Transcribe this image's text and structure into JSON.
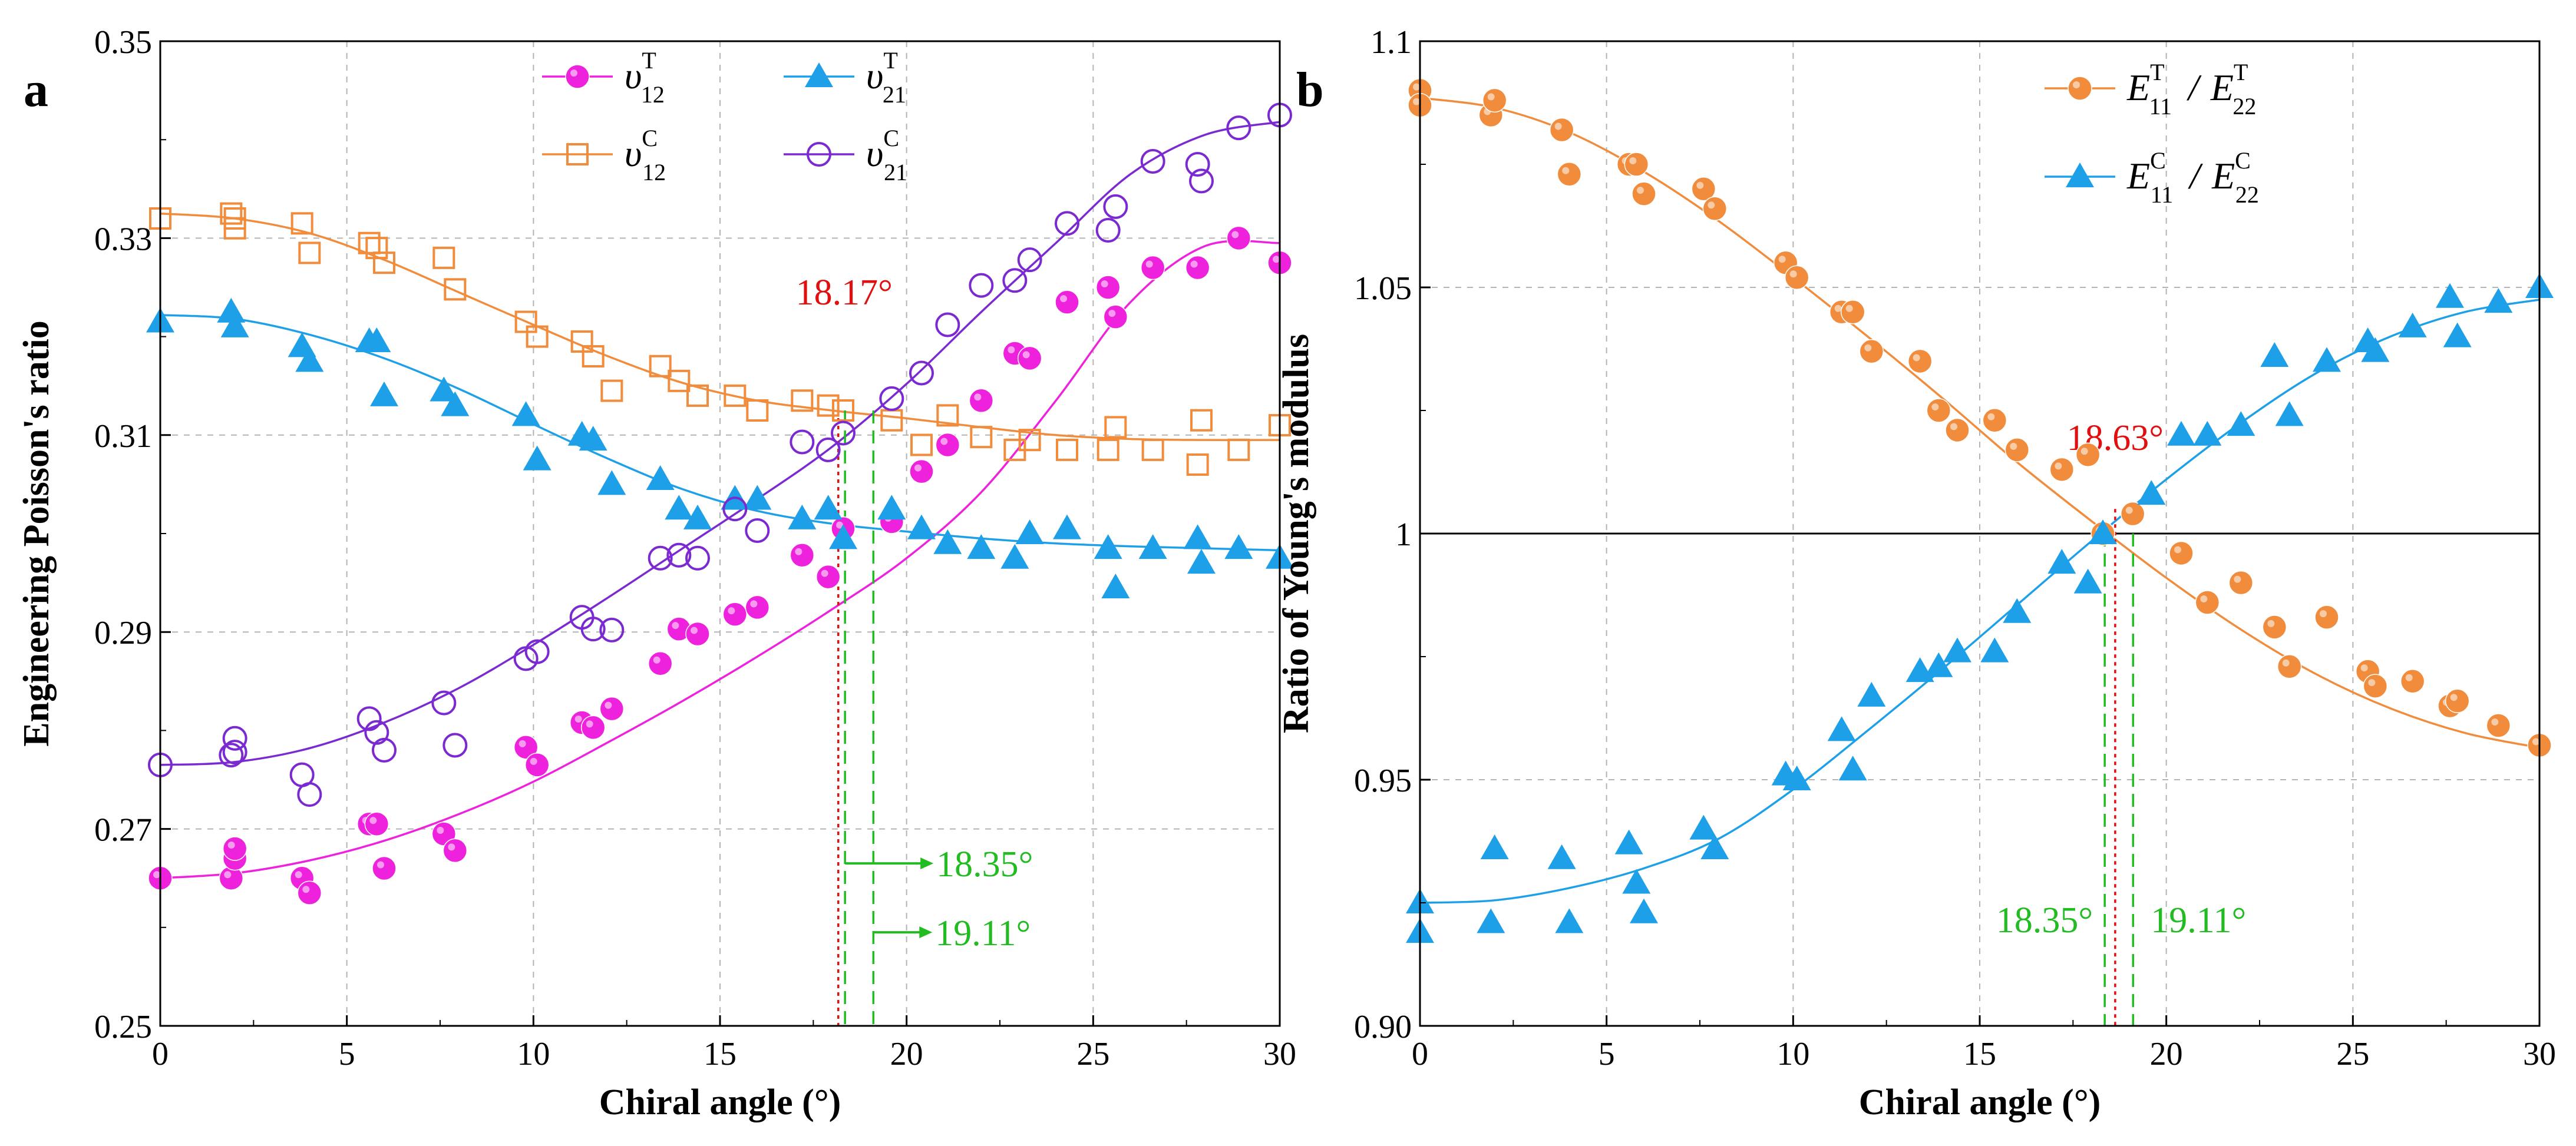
{
  "chart_data": [
    {
      "type": "scatter",
      "panel": "a",
      "xlabel": "Chiral angle (°)",
      "ylabel": "Engineering Poisson's ratio",
      "xlim": [
        0,
        30
      ],
      "ylim": [
        0.25,
        0.35
      ],
      "xticks": [
        "0",
        "5",
        "10",
        "15",
        "20",
        "25",
        "30"
      ],
      "yticks": [
        "0.25",
        "0.27",
        "0.29",
        "0.31",
        "0.33",
        "0.35"
      ],
      "grid": true,
      "legend_position": "top-center",
      "colors": {
        "v12T": "#ee22dd",
        "v21T": "#1ea0e8",
        "v12C": "#f08c3c",
        "v21C": "#7a2ad0",
        "red": "#e01010",
        "green": "#22bb22"
      },
      "series": [
        {
          "name": "v12T",
          "base": "υ",
          "sub": "12",
          "sup": "T",
          "marker": "filled-circle",
          "x": [
            0,
            1.9,
            2.0,
            2.0,
            3.8,
            4.0,
            5.6,
            5.8,
            6.0,
            7.6,
            7.9,
            9.8,
            10.1,
            11.3,
            11.6,
            12.1,
            13.4,
            13.9,
            14.4,
            15.4,
            16.0,
            17.2,
            17.9,
            18.3,
            19.6,
            20.4,
            21.1,
            22.0,
            22.9,
            23.3,
            24.3,
            25.4,
            25.6,
            26.6,
            27.8,
            28.9,
            30.0
          ],
          "y": [
            0.265,
            0.265,
            0.267,
            0.268,
            0.265,
            0.2635,
            0.2705,
            0.2705,
            0.266,
            0.2695,
            0.2678,
            0.2783,
            0.2765,
            0.2808,
            0.2803,
            0.2822,
            0.2868,
            0.2903,
            0.2898,
            0.2918,
            0.2925,
            0.2978,
            0.2956,
            0.3005,
            0.3012,
            0.3063,
            0.309,
            0.3135,
            0.3183,
            0.3178,
            0.3235,
            0.325,
            0.322,
            0.327,
            0.327,
            0.33,
            0.3275
          ]
        },
        {
          "name": "v21T",
          "base": "υ",
          "sub": "21",
          "sup": "T",
          "marker": "filled-triangle",
          "x": [
            0,
            1.9,
            2.0,
            3.8,
            4.0,
            5.6,
            5.8,
            6.0,
            7.6,
            7.9,
            9.8,
            10.1,
            11.3,
            11.6,
            12.1,
            13.4,
            13.9,
            14.4,
            15.4,
            16.0,
            17.2,
            17.9,
            18.3,
            19.6,
            20.4,
            21.1,
            22.0,
            22.9,
            23.3,
            24.3,
            25.4,
            25.6,
            26.6,
            27.8,
            27.9,
            28.9,
            30.0
          ],
          "y": [
            0.3215,
            0.3225,
            0.321,
            0.319,
            0.3175,
            0.3195,
            0.3195,
            0.314,
            0.3145,
            0.313,
            0.312,
            0.3075,
            0.31,
            0.3095,
            0.305,
            0.3055,
            0.3025,
            0.3015,
            0.3035,
            0.3035,
            0.3015,
            0.3025,
            0.2995,
            0.3025,
            0.3005,
            0.299,
            0.2985,
            0.2975,
            0.3,
            0.3005,
            0.2985,
            0.2945,
            0.2985,
            0.2995,
            0.297,
            0.2985,
            0.2975
          ]
        },
        {
          "name": "v12C",
          "base": "υ",
          "sub": "12",
          "sup": "C",
          "marker": "open-square",
          "x": [
            0,
            1.9,
            2.0,
            2.0,
            3.8,
            4.0,
            5.6,
            5.8,
            6.0,
            7.6,
            7.9,
            9.8,
            10.1,
            11.3,
            11.6,
            12.1,
            13.4,
            13.9,
            14.4,
            15.4,
            16.0,
            17.2,
            17.9,
            18.3,
            19.6,
            20.4,
            21.1,
            22.0,
            22.9,
            23.3,
            24.3,
            25.4,
            25.6,
            26.6,
            27.8,
            27.9,
            28.9,
            30.0
          ],
          "y": [
            0.332,
            0.3325,
            0.332,
            0.331,
            0.3315,
            0.3285,
            0.3295,
            0.329,
            0.3275,
            0.328,
            0.3248,
            0.3215,
            0.32,
            0.3195,
            0.318,
            0.3145,
            0.317,
            0.3155,
            0.314,
            0.314,
            0.3125,
            0.3135,
            0.313,
            0.3125,
            0.3115,
            0.309,
            0.312,
            0.3098,
            0.3085,
            0.3095,
            0.3085,
            0.3085,
            0.3108,
            0.3085,
            0.307,
            0.3115,
            0.3085,
            0.311
          ]
        },
        {
          "name": "v21C",
          "base": "υ",
          "sub": "21",
          "sup": "C",
          "marker": "open-circle",
          "x": [
            0,
            1.9,
            2.0,
            2.0,
            3.8,
            4.0,
            5.6,
            5.8,
            6.0,
            7.6,
            7.9,
            9.8,
            10.1,
            11.3,
            11.6,
            12.1,
            13.4,
            13.9,
            14.4,
            15.4,
            16.0,
            17.2,
            17.9,
            18.3,
            19.6,
            20.4,
            21.1,
            22.0,
            22.9,
            23.3,
            24.3,
            25.4,
            25.6,
            26.6,
            27.8,
            27.9,
            28.9,
            30.0
          ],
          "y": [
            0.2765,
            0.2775,
            0.2792,
            0.2778,
            0.2755,
            0.2735,
            0.2812,
            0.2798,
            0.278,
            0.2828,
            0.2785,
            0.2873,
            0.288,
            0.2915,
            0.2903,
            0.2902,
            0.2975,
            0.2978,
            0.2975,
            0.3025,
            0.3003,
            0.3093,
            0.3085,
            0.3102,
            0.3137,
            0.3163,
            0.3212,
            0.3252,
            0.3257,
            0.3278,
            0.3315,
            0.3308,
            0.3332,
            0.3378,
            0.3375,
            0.3358,
            0.3412,
            0.3425
          ]
        }
      ],
      "fits": [
        {
          "series": "v12T",
          "x": [
            0,
            2,
            4,
            6,
            8,
            10,
            12,
            14,
            16,
            18,
            20,
            22,
            24,
            26,
            28,
            30
          ],
          "y": [
            0.265,
            0.2655,
            0.2668,
            0.2688,
            0.2715,
            0.2748,
            0.2788,
            0.283,
            0.2875,
            0.2923,
            0.2975,
            0.3042,
            0.3135,
            0.3235,
            0.3292,
            0.3295
          ]
        },
        {
          "series": "v21T",
          "x": [
            0,
            2,
            4,
            6,
            8,
            10,
            12,
            14,
            16,
            18,
            20,
            22,
            24,
            26,
            28,
            30
          ],
          "y": [
            0.3222,
            0.3218,
            0.3202,
            0.3178,
            0.3147,
            0.3111,
            0.3076,
            0.3045,
            0.3023,
            0.301,
            0.3002,
            0.2995,
            0.299,
            0.2987,
            0.2985,
            0.2983
          ]
        },
        {
          "series": "v12C",
          "x": [
            0,
            2,
            4,
            6,
            8,
            10,
            12,
            14,
            16,
            18,
            20,
            22,
            24,
            26,
            28,
            30
          ],
          "y": [
            0.3325,
            0.332,
            0.3305,
            0.3278,
            0.3245,
            0.3212,
            0.318,
            0.3153,
            0.3135,
            0.3125,
            0.3117,
            0.3108,
            0.31,
            0.3096,
            0.3095,
            0.3095
          ]
        },
        {
          "series": "v21C",
          "x": [
            0,
            2,
            4,
            6,
            8,
            10,
            12,
            14,
            16,
            18,
            20,
            22,
            24,
            26,
            28,
            30
          ],
          "y": [
            0.2765,
            0.2768,
            0.2782,
            0.2808,
            0.2843,
            0.2887,
            0.2935,
            0.2985,
            0.3035,
            0.3088,
            0.3152,
            0.3225,
            0.3295,
            0.3365,
            0.3405,
            0.3418
          ]
        }
      ],
      "markers": [
        {
          "x": 18.17,
          "y_top": 0.3125,
          "color": "red",
          "style": "dotted",
          "label": "18.17°",
          "label_pos": "above"
        },
        {
          "x": 18.35,
          "y_top": 0.3125,
          "color": "green",
          "style": "dashed",
          "label": "18.35°",
          "label_pos": "arrow-upper"
        },
        {
          "x": 19.11,
          "y_top": 0.3125,
          "color": "green",
          "style": "dashed",
          "label": "19.11°",
          "label_pos": "arrow-lower"
        }
      ]
    },
    {
      "type": "scatter",
      "panel": "b",
      "xlabel": "Chiral angle (°)",
      "ylabel": "Ratio of Young's modulus",
      "xlim": [
        0,
        30
      ],
      "ylim": [
        0.9,
        1.1
      ],
      "xticks": [
        "0",
        "5",
        "10",
        "15",
        "20",
        "25",
        "30"
      ],
      "yticks": [
        "0.90",
        "0.95",
        "1",
        "1.05",
        "1.1"
      ],
      "grid": true,
      "reference_line_y": 1.0,
      "legend_position": "top-right",
      "colors": {
        "ET": "#f08c3c",
        "EC": "#1ea0e8",
        "red": "#e01010",
        "green": "#22bb22"
      },
      "series": [
        {
          "name": "ET",
          "num_sub": "11",
          "den_sub": "22",
          "sup": "T",
          "marker": "filled-circle",
          "x": [
            0,
            0,
            1.9,
            2.0,
            3.8,
            4.0,
            5.6,
            5.8,
            6.0,
            7.6,
            7.9,
            9.8,
            10.1,
            11.3,
            11.6,
            12.1,
            13.4,
            13.9,
            14.4,
            15.4,
            16.0,
            17.2,
            17.9,
            18.3,
            19.1,
            20.4,
            21.1,
            22.0,
            22.9,
            23.3,
            24.3,
            25.4,
            25.6,
            26.6,
            27.6,
            27.8,
            28.9,
            30.0
          ],
          "y": [
            1.09,
            1.087,
            1.085,
            1.088,
            1.082,
            1.073,
            1.075,
            1.075,
            1.069,
            1.07,
            1.066,
            1.055,
            1.052,
            1.045,
            1.045,
            1.037,
            1.035,
            1.025,
            1.021,
            1.023,
            1.017,
            1.013,
            1.016,
            1.0,
            1.004,
            0.996,
            0.986,
            0.99,
            0.981,
            0.973,
            0.983,
            0.972,
            0.969,
            0.97,
            0.965,
            0.966,
            0.961,
            0.957
          ]
        },
        {
          "name": "EC",
          "num_sub": "11",
          "den_sub": "22",
          "sup": "C",
          "marker": "filled-triangle",
          "x": [
            0,
            0,
            1.9,
            2.0,
            3.8,
            4.0,
            5.6,
            5.8,
            6.0,
            7.6,
            7.9,
            9.8,
            10.1,
            11.3,
            11.6,
            12.1,
            13.4,
            13.9,
            14.4,
            15.4,
            16.0,
            17.2,
            17.9,
            18.3,
            19.6,
            20.4,
            21.1,
            22.0,
            22.9,
            23.3,
            24.3,
            25.4,
            25.6,
            26.6,
            27.6,
            27.8,
            28.9,
            30.0
          ],
          "y": [
            0.925,
            0.919,
            0.921,
            0.936,
            0.934,
            0.921,
            0.937,
            0.929,
            0.923,
            0.94,
            0.936,
            0.951,
            0.95,
            0.96,
            0.952,
            0.967,
            0.972,
            0.973,
            0.976,
            0.976,
            0.984,
            0.994,
            0.99,
            1.0,
            1.008,
            1.02,
            1.02,
            1.022,
            1.036,
            1.024,
            1.035,
            1.039,
            1.037,
            1.042,
            1.048,
            1.04,
            1.047,
            1.05
          ]
        }
      ],
      "fits": [
        {
          "series": "ET",
          "x": [
            0,
            2,
            4,
            6,
            8,
            10,
            12,
            14,
            16,
            18,
            20,
            22,
            24,
            26,
            28,
            30
          ],
          "y": [
            1.0885,
            1.0865,
            1.0815,
            1.0735,
            1.0635,
            1.052,
            1.04,
            1.0275,
            1.0145,
            1.0025,
            0.991,
            0.9805,
            0.9715,
            0.9645,
            0.9595,
            0.9565
          ]
        },
        {
          "series": "EC",
          "x": [
            0,
            2,
            4,
            6,
            8,
            10,
            12,
            14,
            16,
            18,
            20,
            22,
            24,
            26,
            28,
            30
          ],
          "y": [
            0.925,
            0.9255,
            0.928,
            0.932,
            0.938,
            0.948,
            0.96,
            0.9725,
            0.9855,
            0.9985,
            1.011,
            1.0225,
            1.0325,
            1.04,
            1.045,
            1.0475
          ]
        }
      ],
      "markers": [
        {
          "x": 18.63,
          "y_top": 1.005,
          "color": "red",
          "style": "dotted",
          "label": "18.63°",
          "label_pos": "above"
        },
        {
          "x": 18.35,
          "y_top": 1.0,
          "color": "green",
          "style": "dashed",
          "label": "18.35°",
          "label_pos": "below-left"
        },
        {
          "x": 19.11,
          "y_top": 1.0,
          "color": "green",
          "style": "dashed",
          "label": "19.11°",
          "label_pos": "below-right"
        }
      ]
    }
  ]
}
